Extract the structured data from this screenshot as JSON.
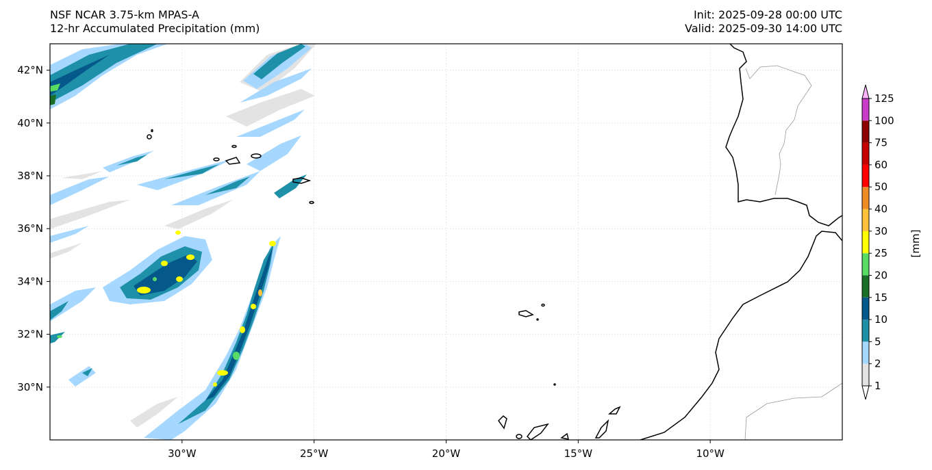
{
  "header": {
    "model": "NSF NCAR 3.75-km MPAS-A",
    "field": "12-hr Accumulated Precipitation (mm)",
    "init": "Init: 2025-09-28 00:00 UTC",
    "valid": "Valid: 2025-09-30 14:00 UTC"
  },
  "map": {
    "lon_range": [
      -35,
      -5
    ],
    "lat_range": [
      28,
      43
    ],
    "lon_ticks": [
      {
        "value": -30,
        "label": "30°W"
      },
      {
        "value": -25,
        "label": "25°W"
      },
      {
        "value": -20,
        "label": "20°W"
      },
      {
        "value": -15,
        "label": "15°W"
      },
      {
        "value": -10,
        "label": "10°W"
      }
    ],
    "lat_ticks": [
      {
        "value": 42,
        "label": "42°N"
      },
      {
        "value": 40,
        "label": "40°N"
      },
      {
        "value": 38,
        "label": "38°N"
      },
      {
        "value": 36,
        "label": "36°N"
      },
      {
        "value": 34,
        "label": "34°N"
      },
      {
        "value": 32,
        "label": "32°N"
      },
      {
        "value": 30,
        "label": "30°N"
      }
    ],
    "gridlines": true
  },
  "colorbar": {
    "units": "[mm]",
    "levels": [
      "1",
      "2",
      "5",
      "10",
      "15",
      "20",
      "25",
      "30",
      "40",
      "50",
      "60",
      "75",
      "100",
      "125"
    ],
    "colors": [
      "#e3e3e3",
      "#a6d8ff",
      "#1e90a8",
      "#05588a",
      "#1a6e28",
      "#58dc64",
      "#ffff00",
      "#ffc23a",
      "#f08c28",
      "#ff0000",
      "#c80000",
      "#8c0000",
      "#c83cc8",
      "#ffb4ff"
    ],
    "extend_under_color": "#ffffff",
    "extend_over_color": "#ffb4ff"
  },
  "colors": {
    "land_border": "#000000",
    "political_border": "#999999",
    "grid": "#dddddd"
  }
}
